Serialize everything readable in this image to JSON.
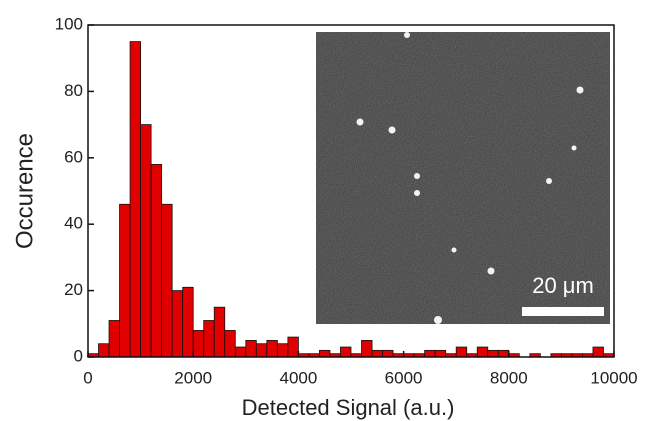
{
  "chart_data": {
    "type": "histogram",
    "xlabel": "Detected Signal (a.u.)",
    "ylabel": "Occurence",
    "bins": [
      0,
      200,
      400,
      600,
      800,
      1000,
      1200,
      1400,
      1600,
      1800,
      2000,
      2200,
      2400,
      2600,
      2800,
      3000,
      3200,
      3400,
      3600,
      3800,
      4000,
      4200,
      4400,
      4600,
      4800,
      5000,
      5200,
      5400,
      5600,
      5800,
      6000,
      6200,
      6400,
      6600,
      6800,
      7000,
      7200,
      7400,
      7600,
      7800,
      8000,
      8200,
      8400,
      8600,
      8800,
      9000,
      9200,
      9400,
      9600,
      9800,
      10000
    ],
    "values": [
      1,
      4,
      11,
      46,
      95,
      70,
      58,
      46,
      20,
      21,
      8,
      11,
      15,
      8,
      3,
      5,
      4,
      5,
      4,
      6,
      1,
      1,
      2,
      1,
      3,
      1,
      5,
      2,
      2,
      1,
      1,
      1,
      2,
      2,
      1,
      3,
      1,
      3,
      2,
      2,
      1,
      0,
      1,
      0,
      1,
      1,
      1,
      1,
      3,
      1
    ],
    "color": "#e00000",
    "xlim": [
      0,
      10000
    ],
    "xticks": [
      0,
      2000,
      4000,
      6000,
      8000,
      10000
    ],
    "ylim": [
      0,
      100
    ],
    "yticks": [
      0,
      20,
      40,
      60,
      80,
      100
    ],
    "annotations": [
      "20 μm"
    ]
  }
}
